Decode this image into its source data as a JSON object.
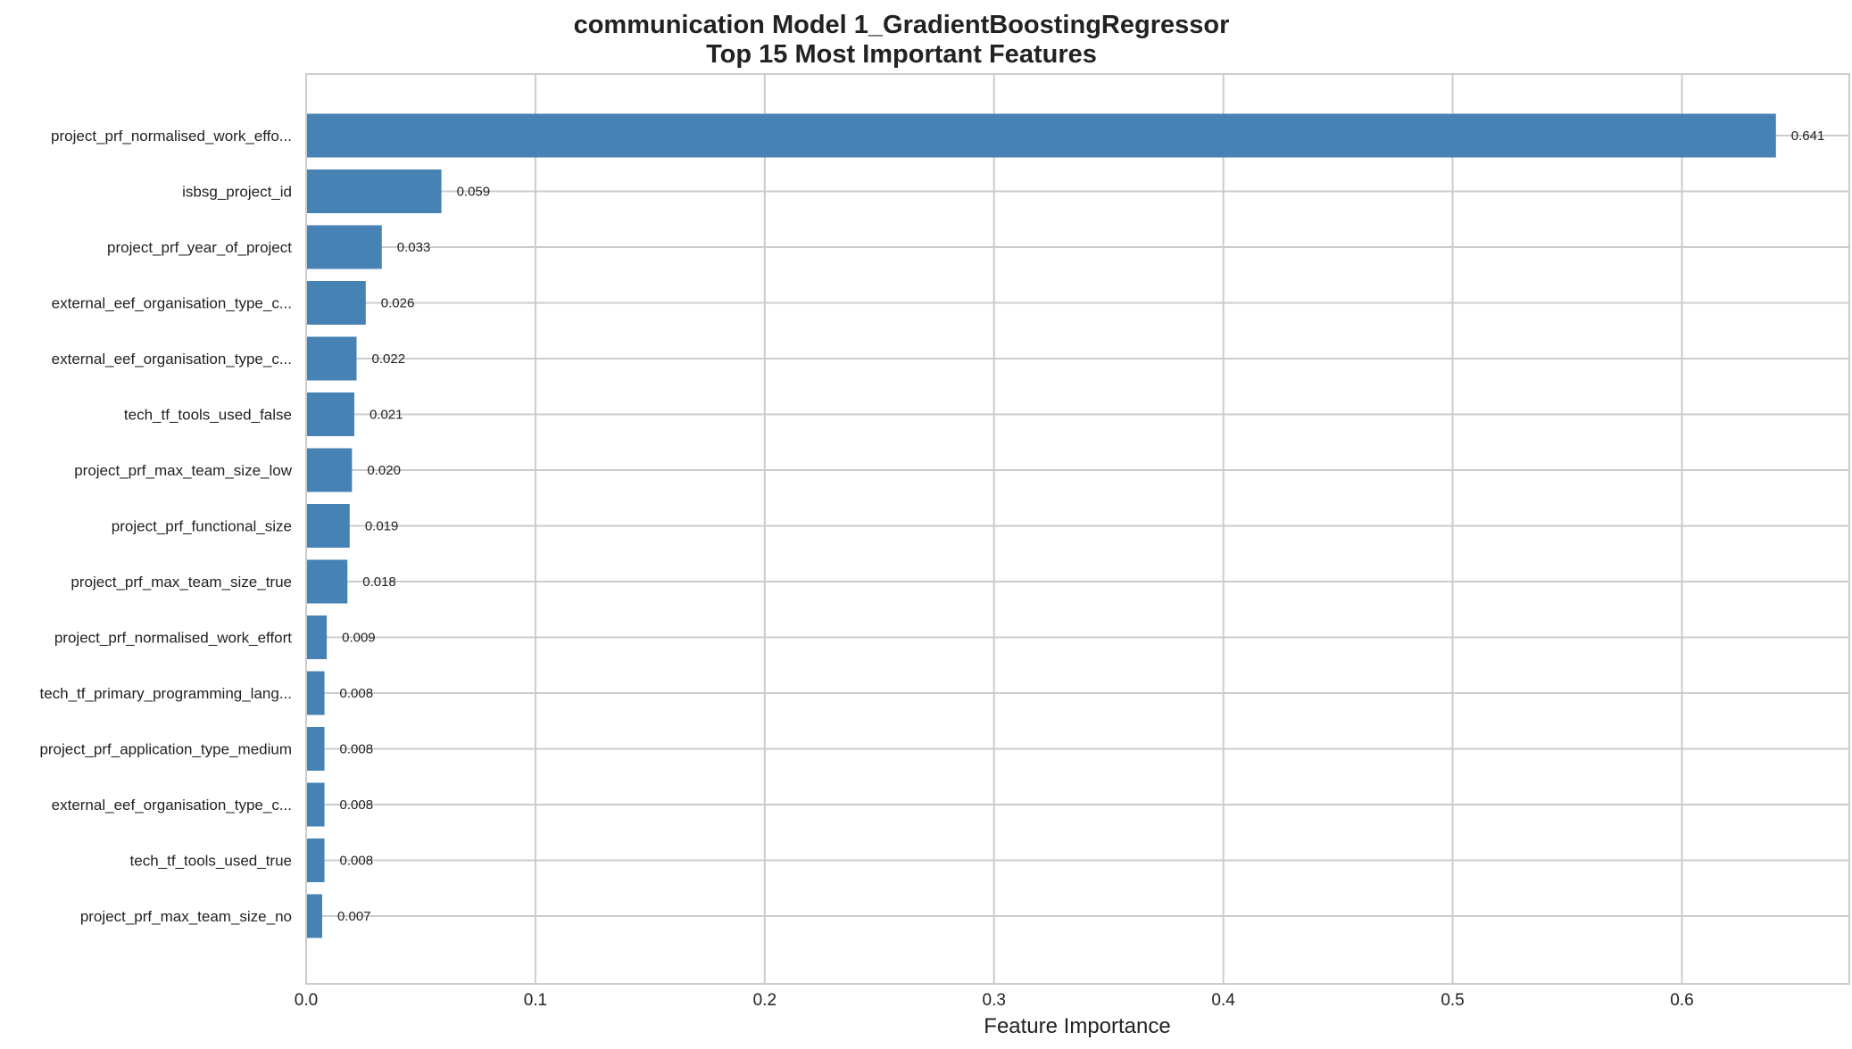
{
  "chart_data": {
    "type": "bar",
    "orientation": "horizontal",
    "title": "communication Model 1_GradientBoostingRegressor",
    "subtitle": "Top 15 Most Important Features",
    "xlabel": "Feature Importance",
    "ylabel": "",
    "xlim": [
      0,
      0.673
    ],
    "xticks": [
      0.0,
      0.1,
      0.2,
      0.3,
      0.4,
      0.5,
      0.6
    ],
    "xtick_labels": [
      "0.0",
      "0.1",
      "0.2",
      "0.3",
      "0.4",
      "0.5",
      "0.6"
    ],
    "grid": true,
    "legend": "none",
    "bar_color": "#4682b4",
    "categories": [
      "project_prf_normalised_work_effo...",
      "isbsg_project_id",
      "project_prf_year_of_project",
      "external_eef_organisation_type_c...",
      "external_eef_organisation_type_c...",
      "tech_tf_tools_used_false",
      "project_prf_max_team_size_low",
      "project_prf_functional_size",
      "project_prf_max_team_size_true",
      "project_prf_normalised_work_effort",
      "tech_tf_primary_programming_lang...",
      "project_prf_application_type_medium",
      "external_eef_organisation_type_c...",
      "tech_tf_tools_used_true",
      "project_prf_max_team_size_no"
    ],
    "values": [
      0.641,
      0.059,
      0.033,
      0.026,
      0.022,
      0.021,
      0.02,
      0.019,
      0.018,
      0.009,
      0.008,
      0.008,
      0.008,
      0.008,
      0.007
    ],
    "value_labels": [
      "0.641",
      "0.059",
      "0.033",
      "0.026",
      "0.022",
      "0.021",
      "0.020",
      "0.019",
      "0.018",
      "0.009",
      "0.008",
      "0.008",
      "0.008",
      "0.008",
      "0.007"
    ]
  }
}
